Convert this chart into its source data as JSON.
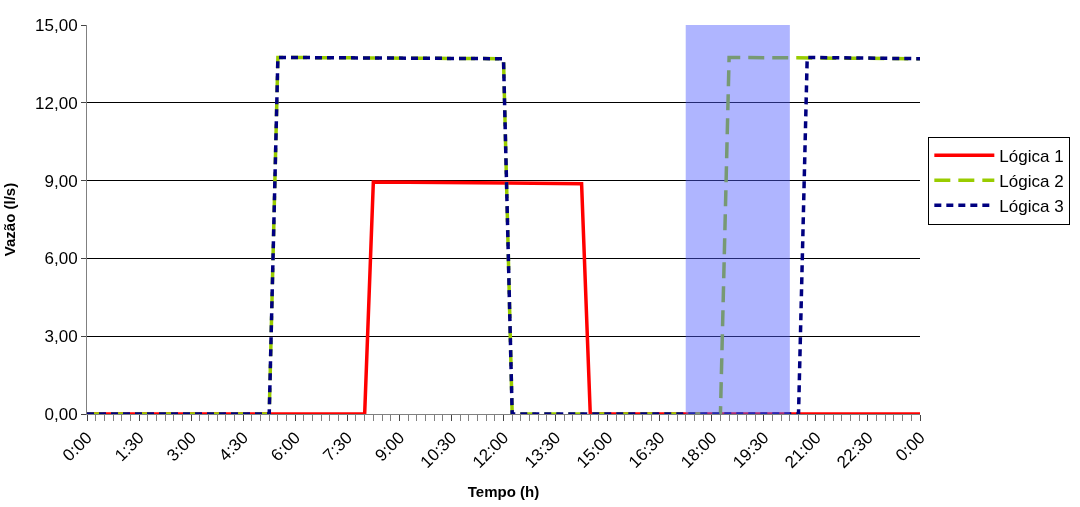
{
  "chart_data": {
    "type": "line",
    "xlabel": "Tempo (h)",
    "ylabel": "Vazão (l/s)",
    "series": [
      {
        "name": "Lógica 1",
        "color": "#ff0000",
        "line_style": "solid",
        "x": [
          0,
          8,
          8.25,
          14.25,
          14.5,
          24
        ],
        "values": [
          0,
          0,
          8.95,
          8.88,
          0,
          0
        ]
      },
      {
        "name": "Lógica 2",
        "color": "#99cc00",
        "line_style": "dashed",
        "x": [
          0,
          5.25,
          5.5,
          12,
          12.25,
          18.25,
          18.5,
          24
        ],
        "values": [
          0,
          0,
          13.75,
          13.7,
          0,
          0,
          13.75,
          13.7
        ]
      },
      {
        "name": "Lógica 3",
        "color": "#000080",
        "line_style": "dotted",
        "x": [
          0,
          5.25,
          5.5,
          12,
          12.25,
          20.5,
          20.75,
          24
        ],
        "values": [
          0,
          0,
          13.75,
          13.7,
          0,
          0,
          13.75,
          13.7
        ]
      }
    ],
    "xlim": [
      0,
      24
    ],
    "xticks": [
      {
        "value": 0,
        "label": "0:00"
      },
      {
        "value": 0.25,
        "label": null
      },
      {
        "value": 0.5,
        "label": null
      },
      {
        "value": 0.75,
        "label": null
      },
      {
        "value": 1,
        "label": null
      },
      {
        "value": 1.25,
        "label": null
      },
      {
        "value": 1.5,
        "label": "1:30"
      },
      {
        "value": 1.75,
        "label": null
      },
      {
        "value": 2,
        "label": null
      },
      {
        "value": 2.25,
        "label": null
      },
      {
        "value": 2.5,
        "label": null
      },
      {
        "value": 2.75,
        "label": null
      },
      {
        "value": 3,
        "label": "3:00"
      },
      {
        "value": 3.25,
        "label": null
      },
      {
        "value": 3.5,
        "label": null
      },
      {
        "value": 3.75,
        "label": null
      },
      {
        "value": 4,
        "label": null
      },
      {
        "value": 4.25,
        "label": null
      },
      {
        "value": 4.5,
        "label": "4:30"
      },
      {
        "value": 4.75,
        "label": null
      },
      {
        "value": 5,
        "label": null
      },
      {
        "value": 5.25,
        "label": null
      },
      {
        "value": 5.5,
        "label": null
      },
      {
        "value": 5.75,
        "label": null
      },
      {
        "value": 6,
        "label": "6:00"
      },
      {
        "value": 6.25,
        "label": null
      },
      {
        "value": 6.5,
        "label": null
      },
      {
        "value": 6.75,
        "label": null
      },
      {
        "value": 7,
        "label": null
      },
      {
        "value": 7.25,
        "label": null
      },
      {
        "value": 7.5,
        "label": "7:30"
      },
      {
        "value": 7.75,
        "label": null
      },
      {
        "value": 8,
        "label": null
      },
      {
        "value": 8.25,
        "label": null
      },
      {
        "value": 8.5,
        "label": null
      },
      {
        "value": 8.75,
        "label": null
      },
      {
        "value": 9,
        "label": "9:00"
      },
      {
        "value": 9.25,
        "label": null
      },
      {
        "value": 9.5,
        "label": null
      },
      {
        "value": 9.75,
        "label": null
      },
      {
        "value": 10,
        "label": null
      },
      {
        "value": 10.25,
        "label": null
      },
      {
        "value": 10.5,
        "label": "10:30"
      },
      {
        "value": 10.75,
        "label": null
      },
      {
        "value": 11,
        "label": null
      },
      {
        "value": 11.25,
        "label": null
      },
      {
        "value": 11.5,
        "label": null
      },
      {
        "value": 11.75,
        "label": null
      },
      {
        "value": 12,
        "label": "12:00"
      },
      {
        "value": 12.25,
        "label": null
      },
      {
        "value": 12.5,
        "label": null
      },
      {
        "value": 12.75,
        "label": null
      },
      {
        "value": 13,
        "label": null
      },
      {
        "value": 13.25,
        "label": null
      },
      {
        "value": 13.5,
        "label": "13:30"
      },
      {
        "value": 13.75,
        "label": null
      },
      {
        "value": 14,
        "label": null
      },
      {
        "value": 14.25,
        "label": null
      },
      {
        "value": 14.5,
        "label": null
      },
      {
        "value": 14.75,
        "label": null
      },
      {
        "value": 15,
        "label": "15:00"
      },
      {
        "value": 15.25,
        "label": null
      },
      {
        "value": 15.5,
        "label": null
      },
      {
        "value": 15.75,
        "label": null
      },
      {
        "value": 16,
        "label": null
      },
      {
        "value": 16.25,
        "label": null
      },
      {
        "value": 16.5,
        "label": "16:30"
      },
      {
        "value": 16.75,
        "label": null
      },
      {
        "value": 17,
        "label": null
      },
      {
        "value": 17.25,
        "label": null
      },
      {
        "value": 17.5,
        "label": null
      },
      {
        "value": 17.75,
        "label": null
      },
      {
        "value": 18,
        "label": "18:00"
      },
      {
        "value": 18.25,
        "label": null
      },
      {
        "value": 18.5,
        "label": null
      },
      {
        "value": 18.75,
        "label": null
      },
      {
        "value": 19,
        "label": null
      },
      {
        "value": 19.25,
        "label": null
      },
      {
        "value": 19.5,
        "label": "19:30"
      },
      {
        "value": 19.75,
        "label": null
      },
      {
        "value": 20,
        "label": null
      },
      {
        "value": 20.25,
        "label": null
      },
      {
        "value": 20.5,
        "label": null
      },
      {
        "value": 20.75,
        "label": null
      },
      {
        "value": 21,
        "label": "21:00"
      },
      {
        "value": 21.25,
        "label": null
      },
      {
        "value": 21.5,
        "label": null
      },
      {
        "value": 21.75,
        "label": null
      },
      {
        "value": 22,
        "label": null
      },
      {
        "value": 22.25,
        "label": null
      },
      {
        "value": 22.5,
        "label": "22:30"
      },
      {
        "value": 22.75,
        "label": null
      },
      {
        "value": 23,
        "label": null
      },
      {
        "value": 23.25,
        "label": null
      },
      {
        "value": 23.5,
        "label": null
      },
      {
        "value": 23.75,
        "label": null
      },
      {
        "value": 24,
        "label": "0:00"
      }
    ],
    "ylim": [
      0,
      15
    ],
    "yticks": [
      {
        "value": 0,
        "label": "0,00"
      },
      {
        "value": 3,
        "label": "3,00"
      },
      {
        "value": 6,
        "label": "6,00"
      },
      {
        "value": 9,
        "label": "9,00"
      },
      {
        "value": 12,
        "label": "12,00"
      },
      {
        "value": 15,
        "label": "15,00"
      }
    ],
    "bands": [
      {
        "axis": "x",
        "from": 17.25,
        "to": 20.25,
        "color": "#4d5cff"
      }
    ],
    "grid": "y",
    "legend": "right",
    "marker": "none"
  }
}
